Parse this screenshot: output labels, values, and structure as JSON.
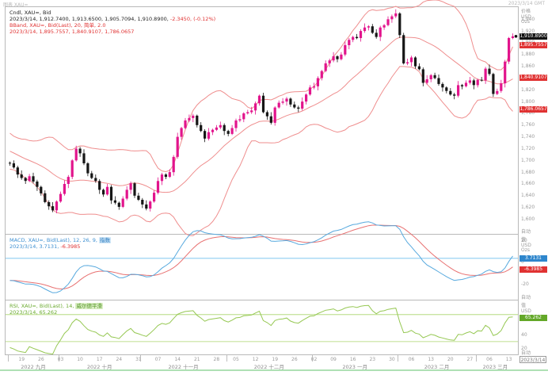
{
  "window": {
    "top_left_note": "图表 XAU=",
    "top_right_note": "2023/3/14 GMT"
  },
  "main_panel": {
    "legend_line1": "Cndl, XAU=, Bid",
    "legend_line2_black": "2023/3/14, 1,912.7400, 1,913.6500, 1,905.7094, 1,910.8900,",
    "legend_line2_red": " -2.3450, (-0.12%)",
    "legend_line3": "BBand, XAU=, Bid(Last), 20, 简单, 2.0",
    "legend_line4": "2023/3/14, 1,895.7557, 1,840.9107, 1,786.0657",
    "axis_header": [
      "价格",
      "USD",
      "Ozs"
    ],
    "price_box": "1,910.8900",
    "band_boxes": [
      "1,895.7557",
      "1,840.9107",
      "1,786.0657"
    ],
    "auto_label": "自动"
  },
  "macd_panel": {
    "legend_line1": "MACD, XAU=, Bid(Last), 12, 26, 9, ",
    "legend_chip": "指数",
    "legend_line2_blue": "2023/3/14, 3.7131,",
    "legend_line2_red": " -6.3985",
    "axis_header": [
      "值",
      "USD",
      "Ozs"
    ],
    "macd_box": "3.7131",
    "signal_box": "-6.3985",
    "auto_label": "自动"
  },
  "rsi_panel": {
    "legend_line1": "RSI, XAU=, Bid(Last), 14, ",
    "legend_chip": "威尔德平滑",
    "legend_line2": "2023/3/14, 65.262",
    "axis_header": [
      "值",
      "USD"
    ],
    "rsi_box": "65.262",
    "auto_label": "自动"
  },
  "date_box": "2023/3/14",
  "colors": {
    "candle_up": "#e2148c",
    "candle_down": "#161616",
    "bollinger": "#ef8e8e",
    "macd_line": "#57a9de",
    "signal_line": "#e87272",
    "macd_level_line": "#8ecdf2",
    "rsi_line": "#96c853",
    "rsi_band_lines": "#a9d56c",
    "axis_text": "#9a9a9a",
    "box_black": "#111111",
    "box_red": "#e03232",
    "box_blue": "#2e86cc",
    "box_green": "#63a828"
  },
  "chart_data": {
    "type": "candlestick",
    "title": "Cndl, XAU=, Bid",
    "last_bar": {
      "date": "2023/3/14",
      "open": 1912.74,
      "high": 1913.65,
      "low": 1905.7094,
      "close": 1910.89,
      "change": -2.345,
      "change_pct": "-0.12%"
    },
    "indicators": {
      "bollinger": {
        "period": 20,
        "ma_type": "简单",
        "stdev": 2.0,
        "upper_last": 1895.7557,
        "middle_last": 1840.9107,
        "lower_last": 1786.0657
      },
      "macd": {
        "fast": 12,
        "slow": 26,
        "signal": 9,
        "method": "指数",
        "macd_last": 3.7131,
        "signal_last": -6.3985
      },
      "rsi": {
        "period": 14,
        "method": "威尔德平滑",
        "last": 65.262
      }
    },
    "y_axis": {
      "min": 1575,
      "max": 1962,
      "ticks": [
        1940,
        1920,
        1900,
        1880,
        1860,
        1840,
        1820,
        1800,
        1780,
        1760,
        1740,
        1720,
        1700,
        1680,
        1660,
        1640,
        1620,
        1600
      ]
    },
    "macd_axis": {
      "min": -34,
      "max": 26,
      "ticks": [
        20,
        0,
        -20
      ]
    },
    "rsi_axis": {
      "min": 10,
      "max": 92,
      "ticks": [
        40,
        20
      ],
      "lines": [
        70,
        30
      ]
    },
    "warmup_closes": [
      1792,
      1788,
      1780,
      1775,
      1765,
      1758,
      1750,
      1746,
      1740,
      1736,
      1748,
      1750,
      1744,
      1738,
      1730,
      1726,
      1720,
      1715,
      1710,
      1705,
      1712,
      1718,
      1722,
      1716,
      1710,
      1706,
      1700,
      1702,
      1698,
      1696
    ],
    "closes": [
      1695,
      1688,
      1676,
      1670,
      1665,
      1673,
      1664,
      1655,
      1644,
      1629,
      1622,
      1615,
      1630,
      1643,
      1660,
      1672,
      1700,
      1720,
      1712,
      1695,
      1678,
      1670,
      1665,
      1650,
      1642,
      1655,
      1632,
      1628,
      1621,
      1635,
      1650,
      1661,
      1640,
      1633,
      1625,
      1618,
      1630,
      1645,
      1665,
      1676,
      1672,
      1680,
      1706,
      1740,
      1755,
      1768,
      1772,
      1776,
      1760,
      1750,
      1737,
      1748,
      1752,
      1756,
      1760,
      1750,
      1745,
      1755,
      1768,
      1770,
      1780,
      1782,
      1785,
      1797,
      1810,
      1782,
      1775,
      1764,
      1790,
      1798,
      1800,
      1805,
      1795,
      1790,
      1788,
      1800,
      1812,
      1824,
      1826,
      1840,
      1852,
      1865,
      1870,
      1877,
      1872,
      1880,
      1896,
      1905,
      1910,
      1908,
      1920,
      1926,
      1928,
      1917,
      1910,
      1926,
      1930,
      1940,
      1945,
      1950,
      1913,
      1865,
      1867,
      1875,
      1860,
      1855,
      1832,
      1838,
      1845,
      1840,
      1830,
      1824,
      1818,
      1812,
      1810,
      1828,
      1826,
      1832,
      1836,
      1828,
      1837,
      1836,
      1856,
      1847,
      1813,
      1818,
      1831,
      1868,
      1908,
      1911
    ],
    "x_ticks": [
      {
        "i": 3,
        "label": "19"
      },
      {
        "i": 8,
        "label": "26"
      },
      {
        "i": 13,
        "label": "03"
      },
      {
        "i": 18,
        "label": "10"
      },
      {
        "i": 23,
        "label": "17"
      },
      {
        "i": 28,
        "label": "24"
      },
      {
        "i": 33,
        "label": "31"
      },
      {
        "i": 38,
        "label": "07"
      },
      {
        "i": 43,
        "label": "14"
      },
      {
        "i": 48,
        "label": "21"
      },
      {
        "i": 53,
        "label": "28"
      },
      {
        "i": 58,
        "label": "05"
      },
      {
        "i": 63,
        "label": "12"
      },
      {
        "i": 68,
        "label": "19"
      },
      {
        "i": 73,
        "label": "26"
      },
      {
        "i": 78,
        "label": "02"
      },
      {
        "i": 83,
        "label": "09"
      },
      {
        "i": 88,
        "label": "16"
      },
      {
        "i": 93,
        "label": "23"
      },
      {
        "i": 98,
        "label": "30"
      },
      {
        "i": 103,
        "label": "06"
      },
      {
        "i": 108,
        "label": "13"
      },
      {
        "i": 113,
        "label": "20"
      },
      {
        "i": 118,
        "label": "27"
      },
      {
        "i": 123,
        "label": "06"
      },
      {
        "i": 128,
        "label": "13"
      }
    ],
    "months": [
      {
        "from": 0,
        "to": 12,
        "label": "2022 九月"
      },
      {
        "from": 13,
        "to": 33,
        "label": "2022 十月"
      },
      {
        "from": 34,
        "to": 55,
        "label": "2022 十一月"
      },
      {
        "from": 56,
        "to": 77,
        "label": "2022 十二月"
      },
      {
        "from": 78,
        "to": 99,
        "label": "2023 一月"
      },
      {
        "from": 100,
        "to": 119,
        "label": "2023 二月"
      },
      {
        "from": 120,
        "to": 129,
        "label": "2023 三月"
      }
    ]
  }
}
